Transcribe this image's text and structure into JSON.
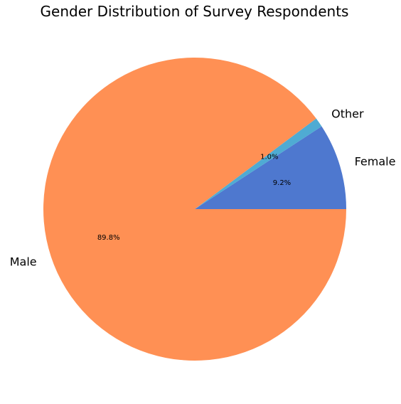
{
  "chart_data": {
    "type": "pie",
    "title": "Gender Distribution of Survey Respondents",
    "slices": [
      {
        "label": "Female",
        "value": 9.2,
        "pct_label": "9.2%",
        "color": "#4e78cf"
      },
      {
        "label": "Other",
        "value": 1.0,
        "pct_label": "1.0%",
        "color": "#4fabd3"
      },
      {
        "label": "Male",
        "value": 89.8,
        "pct_label": "89.8%",
        "color": "#ff9054"
      }
    ],
    "start_angle_deg": 0,
    "direction": "counterclockwise",
    "legend": "none"
  }
}
